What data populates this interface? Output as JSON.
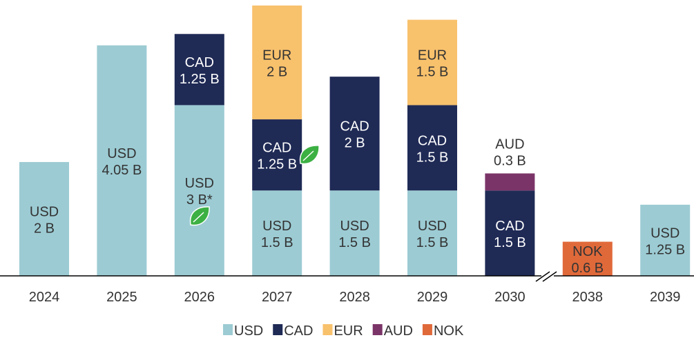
{
  "chart_data": {
    "type": "stacked_bar",
    "categories": [
      "2024",
      "2025",
      "2026",
      "2027",
      "2028",
      "2029",
      "2030",
      "2038",
      "2039"
    ],
    "series": [
      {
        "name": "USD",
        "color": "#9ccbd3",
        "values": [
          2,
          4.05,
          3,
          1.5,
          1.5,
          1.5,
          null,
          null,
          1.25
        ],
        "value_labels": [
          "2 B",
          "4.05 B",
          "3 B*",
          "1.5 B",
          "1.5 B",
          "1.5 B",
          null,
          null,
          "1.25 B"
        ]
      },
      {
        "name": "CAD",
        "color": "#1f2a55",
        "values": [
          null,
          null,
          1.25,
          1.25,
          2,
          1.5,
          1.5,
          null,
          null
        ],
        "value_labels": [
          null,
          null,
          "1.25 B",
          "1.25 B",
          "2 B",
          "1.5 B",
          "1.5 B",
          null,
          null
        ]
      },
      {
        "name": "EUR",
        "color": "#f8c16c",
        "values": [
          null,
          null,
          null,
          2,
          null,
          1.5,
          null,
          null,
          null
        ],
        "value_labels": [
          null,
          null,
          null,
          "2 B",
          null,
          "1.5 B",
          null,
          null,
          null
        ]
      },
      {
        "name": "AUD",
        "color": "#7b3468",
        "values": [
          null,
          null,
          null,
          null,
          null,
          null,
          0.3,
          null,
          null
        ],
        "value_labels": [
          null,
          null,
          null,
          null,
          null,
          null,
          "0.3 B",
          null,
          null
        ]
      },
      {
        "name": "NOK",
        "color": "#e0693a",
        "values": [
          null,
          null,
          null,
          null,
          null,
          null,
          null,
          0.6,
          null
        ],
        "value_labels": [
          null,
          null,
          null,
          null,
          null,
          null,
          null,
          "0.6 B",
          null
        ]
      }
    ],
    "legend": "bottom"
  }
}
